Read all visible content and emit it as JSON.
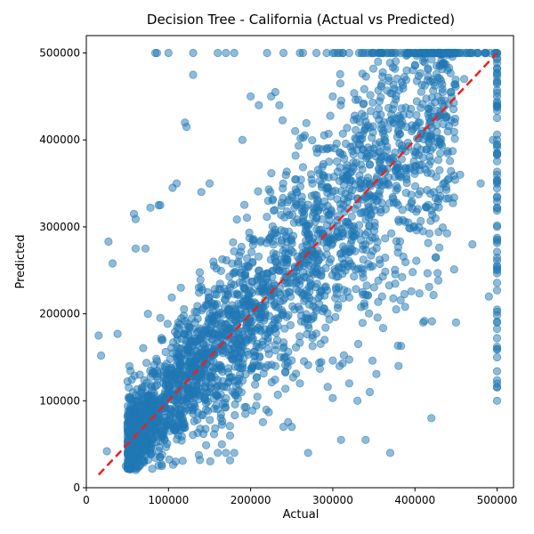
{
  "chart_data": {
    "type": "scatter",
    "title": "Decision Tree - California (Actual vs Predicted)",
    "xlabel": "Actual",
    "ylabel": "Predicted",
    "xlim": [
      0,
      520000
    ],
    "ylim": [
      0,
      520000
    ],
    "xticks": [
      0,
      100000,
      200000,
      300000,
      400000,
      500000
    ],
    "yticks": [
      0,
      100000,
      200000,
      300000,
      400000,
      500000
    ],
    "xtick_labels": [
      "0",
      "100000",
      "200000",
      "300000",
      "400000",
      "500000"
    ],
    "ytick_labels": [
      "0",
      "100000",
      "200000",
      "300000",
      "400000",
      "500000"
    ],
    "grid": false,
    "reference_line": {
      "style": "dashed",
      "color": "#e8221e",
      "x": [
        15000,
        500000
      ],
      "y": [
        15000,
        500000
      ]
    },
    "point_color": "#1f77b4",
    "point_alpha": 0.5,
    "series": [
      {
        "values": [
          [
            15000,
            175000
          ],
          [
            18000,
            152000
          ],
          [
            25000,
            42000
          ],
          [
            27000,
            283000
          ],
          [
            32000,
            258000
          ],
          [
            38000,
            177000
          ],
          [
            48000,
            25000
          ],
          [
            55000,
            70000
          ],
          [
            58000,
            315000
          ],
          [
            60000,
            275000
          ],
          [
            60000,
            309000
          ],
          [
            62000,
            45000
          ],
          [
            65000,
            130000
          ],
          [
            70000,
            55000
          ],
          [
            72000,
            275000
          ],
          [
            75000,
            200000
          ],
          [
            77000,
            40000
          ],
          [
            78000,
            322000
          ],
          [
            84000,
            500000
          ],
          [
            86000,
            500000
          ],
          [
            88000,
            325000
          ],
          [
            90000,
            325000
          ],
          [
            93000,
            170000
          ],
          [
            100000,
            500000
          ],
          [
            105000,
            345000
          ],
          [
            110000,
            350000
          ],
          [
            112000,
            190000
          ],
          [
            115000,
            230000
          ],
          [
            120000,
            420000
          ],
          [
            122000,
            415000
          ],
          [
            130000,
            475000
          ],
          [
            130000,
            500000
          ],
          [
            140000,
            340000
          ],
          [
            150000,
            350000
          ],
          [
            160000,
            40000
          ],
          [
            165000,
            50000
          ],
          [
            170000,
            40000
          ],
          [
            175000,
            60000
          ],
          [
            180000,
            40000
          ],
          [
            185000,
            260000
          ],
          [
            190000,
            400000
          ],
          [
            200000,
            450000
          ],
          [
            210000,
            440000
          ],
          [
            225000,
            450000
          ],
          [
            230000,
            455000
          ],
          [
            235000,
            440000
          ],
          [
            240000,
            70000
          ],
          [
            250000,
            70000
          ],
          [
            260000,
            120000
          ],
          [
            270000,
            40000
          ],
          [
            280000,
            390000
          ],
          [
            290000,
            170000
          ],
          [
            300000,
            450000
          ],
          [
            310000,
            55000
          ],
          [
            315000,
            300000
          ],
          [
            320000,
            120000
          ],
          [
            330000,
            100000
          ],
          [
            340000,
            55000
          ],
          [
            345000,
            110000
          ],
          [
            350000,
            390000
          ],
          [
            360000,
            220000
          ],
          [
            370000,
            40000
          ],
          [
            380000,
            140000
          ],
          [
            390000,
            480000
          ],
          [
            400000,
            370000
          ],
          [
            410000,
            190000
          ],
          [
            420000,
            80000
          ],
          [
            425000,
            310000
          ],
          [
            430000,
            500000
          ],
          [
            440000,
            410000
          ],
          [
            450000,
            190000
          ],
          [
            455000,
            360000
          ],
          [
            460000,
            470000
          ],
          [
            470000,
            280000
          ],
          [
            480000,
            350000
          ],
          [
            490000,
            220000
          ],
          [
            495000,
            400000
          ],
          [
            500000,
            100000
          ],
          [
            500000,
            120000
          ],
          [
            500000,
            150000
          ],
          [
            500000,
            190000
          ],
          [
            500000,
            250000
          ],
          [
            500000,
            300000
          ],
          [
            500000,
            350000
          ],
          [
            500000,
            400000
          ],
          [
            500000,
            450000
          ],
          [
            500000,
            500000
          ],
          [
            470000,
            500000
          ],
          [
            455000,
            500000
          ],
          [
            440000,
            500000
          ],
          [
            410000,
            500000
          ],
          [
            390000,
            500000
          ],
          [
            375000,
            500000
          ],
          [
            360000,
            500000
          ],
          [
            340000,
            500000
          ],
          [
            320000,
            500000
          ],
          [
            300000,
            500000
          ],
          [
            280000,
            500000
          ],
          [
            260000,
            500000
          ],
          [
            240000,
            500000
          ],
          [
            220000,
            500000
          ],
          [
            180000,
            500000
          ],
          [
            170000,
            500000
          ],
          [
            160000,
            500000
          ]
        ]
      }
    ]
  }
}
